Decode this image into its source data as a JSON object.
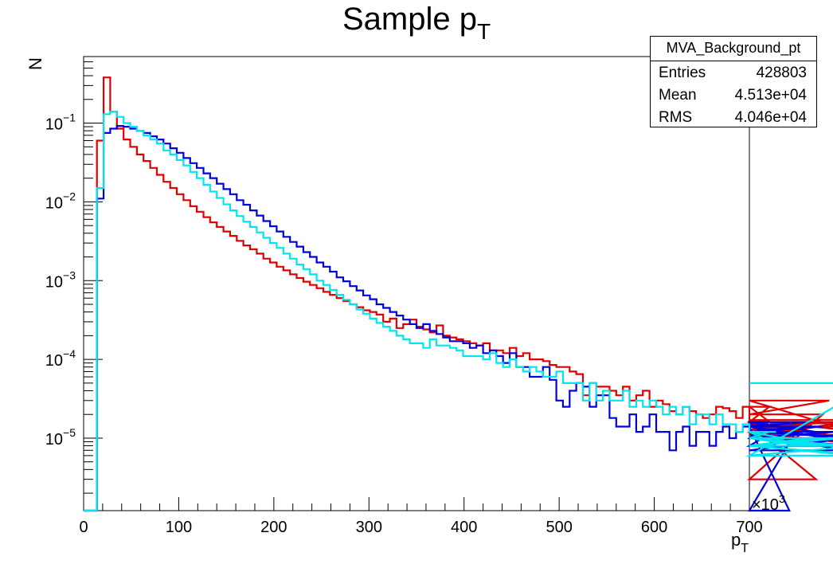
{
  "chart_data": {
    "type": "histogram",
    "title_main": "Sample p",
    "title_sub": "T",
    "xlabel_main": "p",
    "xlabel_sub": "T",
    "ylabel": "N",
    "x_multiplier_label": "×10",
    "x_multiplier_exp": "3",
    "xlim": [
      0,
      700
    ],
    "ylim": [
      1.2e-06,
      0.7
    ],
    "yscale": "log",
    "x_ticks": [
      0,
      100,
      200,
      300,
      400,
      500,
      600,
      700
    ],
    "x_tick_labels": [
      "0",
      "100",
      "200",
      "300",
      "400",
      "500",
      "600",
      "700"
    ],
    "y_ticks": [
      0.1,
      0.01,
      0.001,
      0.0001,
      1e-05
    ],
    "y_tick_labels": [
      {
        "base": "10",
        "exp": "−1"
      },
      {
        "base": "10",
        "exp": "−2"
      },
      {
        "base": "10",
        "exp": "−3"
      },
      {
        "base": "10",
        "exp": "−4"
      },
      {
        "base": "10",
        "exp": "−5"
      }
    ],
    "bin_width": 7,
    "x_start": 0,
    "series": [
      {
        "color": "#e00000",
        "values": [
          0,
          0,
          0.06,
          0.38,
          0.14,
          0.085,
          0.062,
          0.05,
          0.04,
          0.033,
          0.027,
          0.022,
          0.018,
          0.015,
          0.0125,
          0.0105,
          0.0088,
          0.0075,
          0.0064,
          0.0055,
          0.0048,
          0.0042,
          0.0037,
          0.0032,
          0.0028,
          0.0025,
          0.0022,
          0.0019,
          0.0017,
          0.0015,
          0.00135,
          0.0012,
          0.00108,
          0.00097,
          0.00088,
          0.0008,
          0.00072,
          0.00066,
          0.0006,
          0.00055,
          0.0005,
          0.00046,
          0.00042,
          0.0004,
          0.00037,
          0.0003,
          0.00033,
          0.00025,
          0.00028,
          0.00032,
          0.00026,
          0.00024,
          0.00022,
          0.00027,
          0.0002,
          0.00019,
          0.00018,
          0.00017,
          0.00016,
          0.00015,
          0.00016,
          0.00013,
          0.00013,
          0.00012,
          0.00014,
          0.00011,
          0.00012,
          0.0001,
          0.0001,
          9.5e-05,
          8.5e-05,
          8e-05,
          8e-05,
          7e-05,
          6.5e-05,
          3.5e-05,
          5e-05,
          4.5e-05,
          4.5e-05,
          4e-05,
          3.5e-05,
          4.5e-05,
          3e-05,
          3.5e-05,
          4e-05,
          2.5e-05,
          3e-05,
          2.7e-05,
          2.2e-05,
          2e-05,
          2.5e-05,
          2.2e-05,
          2e-05,
          1.8e-05,
          2e-05,
          2.5e-05,
          2.4e-05,
          2.2e-05,
          1.8e-05,
          2.5e-05,
          1.5e-05,
          1.2e-05,
          1.6e-05,
          2.5e-05,
          1.4e-05,
          1.2e-05,
          1.5e-05,
          1.4e-05,
          1.2e-05,
          1.5e-05,
          3e-06,
          2e-05,
          3e-05,
          1.4e-05,
          1.6e-05,
          1e-05,
          1.7e-05,
          1.2e-05,
          8e-06,
          1.1e-05
        ]
      },
      {
        "color": "#0000dd",
        "values": [
          0,
          0,
          0.011,
          0.075,
          0.085,
          0.092,
          0.09,
          0.085,
          0.08,
          0.075,
          0.068,
          0.062,
          0.055,
          0.048,
          0.042,
          0.036,
          0.031,
          0.027,
          0.023,
          0.02,
          0.017,
          0.0145,
          0.0125,
          0.0105,
          0.0092,
          0.0078,
          0.0067,
          0.0057,
          0.0049,
          0.0042,
          0.0036,
          0.0031,
          0.0027,
          0.0023,
          0.002,
          0.0017,
          0.0015,
          0.0013,
          0.0011,
          0.00098,
          0.00085,
          0.00075,
          0.00065,
          0.00058,
          0.0005,
          0.00045,
          0.0004,
          0.00036,
          0.00032,
          0.00028,
          0.00025,
          0.00028,
          0.00023,
          0.00021,
          0.00019,
          0.00017,
          0.00017,
          0.00016,
          0.00014,
          0.00015,
          0.00012,
          0.00013,
          0.00011,
          9e-05,
          0.00012,
          8e-05,
          8e-05,
          6e-05,
          6e-05,
          8e-05,
          5.5e-05,
          3e-05,
          2.5e-05,
          4e-05,
          5e-05,
          4.5e-05,
          2.5e-05,
          3.5e-05,
          3.5e-05,
          1.8e-05,
          1.4e-05,
          1.4e-05,
          2e-05,
          1.2e-05,
          1.4e-05,
          2e-05,
          1.2e-05,
          1.2e-05,
          7e-06,
          1.2e-05,
          1.4e-05,
          8e-06,
          1.2e-05,
          1.2e-05,
          8e-06,
          1.2e-05,
          1.4e-05,
          1e-05,
          1.2e-05,
          1.4e-05,
          1.2e-05,
          1e-05,
          1.4e-05,
          1.6e-05,
          8e-06,
          1.4e-05,
          1e-06,
          1.2e-05,
          1.4e-05,
          1.6e-05,
          1.2e-05,
          1.4e-05,
          1e-05,
          1.2e-05,
          7e-06,
          1e-05,
          8e-06,
          1.2e-05,
          1e-05,
          1e-05
        ]
      },
      {
        "color": "#00e5ee",
        "values": [
          0,
          0,
          0.015,
          0.13,
          0.14,
          0.12,
          0.1,
          0.09,
          0.08,
          0.07,
          0.062,
          0.055,
          0.045,
          0.04,
          0.034,
          0.029,
          0.024,
          0.02,
          0.0165,
          0.0135,
          0.0112,
          0.0093,
          0.0078,
          0.0066,
          0.0056,
          0.0048,
          0.0041,
          0.0035,
          0.003,
          0.0026,
          0.0022,
          0.0019,
          0.0016,
          0.0014,
          0.0012,
          0.001,
          0.00088,
          0.00076,
          0.00066,
          0.00057,
          0.0005,
          0.00043,
          0.00038,
          0.00033,
          0.00029,
          0.00026,
          0.00023,
          0.0002,
          0.00018,
          0.00016,
          0.00016,
          0.00014,
          0.00018,
          0.00015,
          0.00015,
          0.00014,
          0.00013,
          0.00011,
          0.00011,
          0.00011,
          0.0001,
          0.00012,
          9e-05,
          8e-05,
          0.0001,
          8e-05,
          7e-05,
          8e-05,
          7e-05,
          6e-05,
          6e-05,
          7e-05,
          5e-05,
          5e-05,
          5e-05,
          3e-05,
          5e-05,
          3e-05,
          4e-05,
          3e-05,
          3e-05,
          4e-05,
          2.5e-05,
          3e-05,
          2.5e-05,
          3e-05,
          2.5e-05,
          2e-05,
          2.5e-05,
          2e-05,
          2.5e-05,
          1.5e-05,
          2e-05,
          2e-05,
          1.5e-05,
          2e-05,
          1.5e-05,
          1.5e-05,
          1.2e-05,
          1.5e-05,
          1.2e-05,
          1.2e-05,
          1e-05,
          1.2e-05,
          1.2e-05,
          1e-05,
          1e-05,
          1e-05,
          8e-06,
          1e-05,
          8e-06,
          1e-05,
          8e-06,
          8e-06,
          1e-05,
          8e-06,
          6e-06,
          8e-06,
          6e-06,
          5e-05
        ]
      }
    ]
  },
  "stats_box": {
    "title": "MVA_Background_pt",
    "entries_label": "Entries",
    "entries_value": "428803",
    "mean_label": "Mean",
    "mean_value": "4.513e+04",
    "rms_label": "RMS",
    "rms_value": "4.046e+04"
  }
}
